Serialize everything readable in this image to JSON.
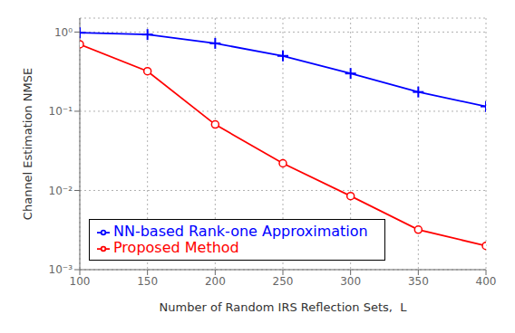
{
  "chart_data": {
    "type": "line",
    "x": [
      100,
      150,
      200,
      250,
      300,
      350,
      400
    ],
    "series": [
      {
        "name": "Proposed Method",
        "color": "#FF0000",
        "marker": "o",
        "values": [
          0.7,
          0.32,
          0.068,
          0.022,
          0.0085,
          0.0032,
          0.002
        ]
      },
      {
        "name": "NN-based Rank-one Approximation",
        "color": "#0000FF",
        "marker": "+",
        "values": [
          0.98,
          0.93,
          0.72,
          0.5,
          0.3,
          0.175,
          0.115
        ]
      }
    ],
    "xlabel": "Number of Random IRS Reflection Sets,  L",
    "ylabel": "Channel Estimation NMSE",
    "xlim": [
      100,
      400
    ],
    "xticks": [
      100,
      150,
      200,
      250,
      300,
      350,
      400
    ],
    "ylim": [
      0.001,
      1.5
    ],
    "yticks": [
      {
        "value": 0.001,
        "label": "10⁻³"
      },
      {
        "value": 0.01,
        "label": "10⁻²"
      },
      {
        "value": 0.1,
        "label": "10⁻¹"
      },
      {
        "value": 1,
        "label": "10⁰"
      }
    ],
    "log": "y",
    "grid": true,
    "legend": "lower left"
  }
}
